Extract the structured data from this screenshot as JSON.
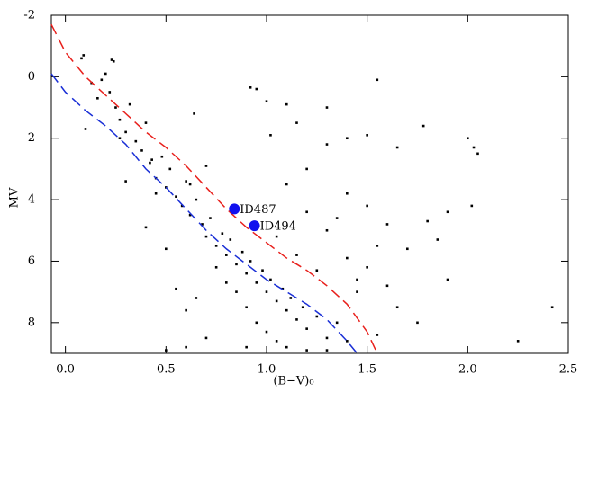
{
  "chart_data": {
    "type": "scatter",
    "xlabel": "(B−V)₀",
    "ylabel": "MV",
    "xlim": [
      -0.07,
      2.5
    ],
    "ylim": [
      9,
      -2
    ],
    "xticks": [
      {
        "value": 0,
        "label": "0.0"
      },
      0.5,
      {
        "value": 1,
        "label": "1.0"
      },
      1.5,
      {
        "value": 2,
        "label": "2.0"
      },
      2.5
    ],
    "yticks": [
      -2,
      0,
      2,
      4,
      6,
      8
    ],
    "series": [
      {
        "color": "#000000",
        "x": [
          0.08,
          0.13,
          0.16,
          0.2,
          0.22,
          0.25,
          0.24,
          0.27,
          0.3,
          0.32,
          0.35,
          0.38,
          0.4,
          0.42,
          0.45,
          0.48,
          0.5,
          0.52,
          0.55,
          0.58,
          0.6,
          0.62,
          0.65,
          0.68,
          0.7,
          0.72,
          0.75,
          0.78,
          0.8,
          0.82,
          0.85,
          0.88,
          0.9,
          0.92,
          0.95,
          0.98,
          1.0,
          1.02,
          1.05,
          1.08,
          1.1,
          1.12,
          1.15,
          1.18,
          1.2,
          1.25,
          1.3,
          1.35,
          1.4,
          0.85,
          0.9,
          0.95,
          1.0,
          0.8,
          0.75,
          1.05,
          1.1,
          0.9,
          0.7,
          0.6,
          0.5,
          1.2,
          1.3,
          1.45,
          1.5,
          1.55,
          1.6,
          1.3,
          1.2,
          1.4,
          1.35,
          1.5,
          1.6,
          1.7,
          1.8,
          1.9,
          2.02,
          1.85,
          1.1,
          1.2,
          1.3,
          1.4,
          1.5,
          1.65,
          1.78,
          2.0,
          2.03,
          2.05,
          1.0,
          0.95,
          0.92,
          1.1,
          1.3,
          1.55,
          1.02,
          1.15,
          0.64,
          0.7,
          0.62,
          0.45,
          0.4,
          0.5,
          0.55,
          0.6,
          0.65,
          2.42,
          2.25,
          1.9,
          1.75,
          1.65,
          1.55,
          0.3,
          0.27,
          0.1,
          0.18,
          0.09,
          0.23,
          0.43,
          1.25,
          1.15,
          1.05,
          1.4,
          1.45
        ],
        "values": [
          -0.6,
          0.2,
          0.7,
          -0.1,
          0.5,
          1.0,
          -0.5,
          1.4,
          1.8,
          0.9,
          2.1,
          2.4,
          1.5,
          2.8,
          3.3,
          2.6,
          3.6,
          3.0,
          3.9,
          4.2,
          3.4,
          4.5,
          4.0,
          4.8,
          5.2,
          4.6,
          5.5,
          5.1,
          5.8,
          5.3,
          6.1,
          5.7,
          6.4,
          6.0,
          6.7,
          6.3,
          7.0,
          6.6,
          7.3,
          6.9,
          7.6,
          7.2,
          7.9,
          7.5,
          8.2,
          7.8,
          8.5,
          8.0,
          8.6,
          7.0,
          7.5,
          8.0,
          8.3,
          6.7,
          6.2,
          8.6,
          8.8,
          8.8,
          8.5,
          8.8,
          8.9,
          8.9,
          8.9,
          7.0,
          6.2,
          5.5,
          6.8,
          5.0,
          4.4,
          3.8,
          4.6,
          4.2,
          4.8,
          5.6,
          4.7,
          4.4,
          4.2,
          5.3,
          3.5,
          3.0,
          2.2,
          2.0,
          1.9,
          2.3,
          1.6,
          2.0,
          2.3,
          2.5,
          0.8,
          0.4,
          0.35,
          0.9,
          1.0,
          0.1,
          1.9,
          1.5,
          1.2,
          2.9,
          3.5,
          3.8,
          4.9,
          5.6,
          6.9,
          7.6,
          7.2,
          7.5,
          8.6,
          6.6,
          8.0,
          7.5,
          8.4,
          3.4,
          2.0,
          1.7,
          0.1,
          -0.7,
          -0.55,
          2.7,
          6.3,
          5.8,
          5.2,
          5.9,
          6.6
        ]
      }
    ],
    "lines": [
      {
        "color": "#e8201c",
        "x": [
          -0.07,
          0,
          0.1,
          0.2,
          0.3,
          0.4,
          0.5,
          0.6,
          0.7,
          0.8,
          0.9,
          1.0,
          1.1,
          1.2,
          1.3,
          1.4,
          1.5,
          1.55
        ],
        "values": [
          -1.7,
          -0.8,
          0,
          0.6,
          1.2,
          1.8,
          2.3,
          2.9,
          3.6,
          4.3,
          4.9,
          5.4,
          5.9,
          6.3,
          6.8,
          7.4,
          8.3,
          9
        ]
      },
      {
        "color": "#1a2fd6",
        "x": [
          -0.07,
          0,
          0.1,
          0.2,
          0.3,
          0.4,
          0.5,
          0.6,
          0.7,
          0.8,
          0.9,
          1.0,
          1.1,
          1.2,
          1.3,
          1.4,
          1.45
        ],
        "values": [
          -0.1,
          0.5,
          1.1,
          1.6,
          2.2,
          3.0,
          3.6,
          4.3,
          5.0,
          5.6,
          6.1,
          6.6,
          7.0,
          7.4,
          7.9,
          8.6,
          9
        ]
      }
    ],
    "highlights": {
      "color": "#1010ee",
      "labels": [
        "ID487",
        "ID494"
      ],
      "x": [
        0.84,
        0.94
      ],
      "values": [
        4.3,
        4.85
      ]
    }
  }
}
